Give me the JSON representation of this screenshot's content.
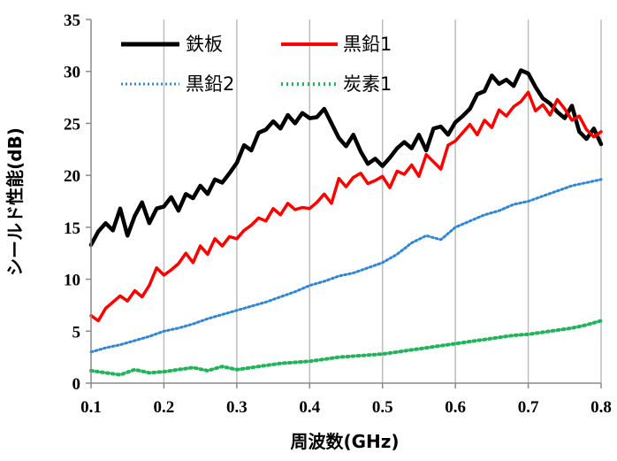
{
  "chart_data": {
    "type": "line",
    "title": "",
    "xlabel": "周波数(GHz)",
    "ylabel": "シールド性能(dB)",
    "xlim": [
      0.1,
      0.8
    ],
    "ylim": [
      0,
      35
    ],
    "xticks": [
      "0.1",
      "0.2",
      "0.3",
      "0.4",
      "0.5",
      "0.6",
      "0.7",
      "0.8"
    ],
    "yticks": [
      "0",
      "5",
      "10",
      "15",
      "20",
      "25",
      "30",
      "35"
    ],
    "grid": "vertical",
    "legend_position": "top-left",
    "series": [
      {
        "name": "鉄板",
        "style": "solid",
        "color": "#000000",
        "x": [
          0.1,
          0.11,
          0.12,
          0.13,
          0.14,
          0.15,
          0.16,
          0.17,
          0.18,
          0.19,
          0.2,
          0.21,
          0.22,
          0.23,
          0.24,
          0.25,
          0.26,
          0.27,
          0.28,
          0.29,
          0.3,
          0.31,
          0.32,
          0.33,
          0.34,
          0.35,
          0.36,
          0.37,
          0.38,
          0.39,
          0.4,
          0.41,
          0.42,
          0.43,
          0.44,
          0.45,
          0.46,
          0.47,
          0.48,
          0.49,
          0.5,
          0.51,
          0.52,
          0.53,
          0.54,
          0.55,
          0.56,
          0.57,
          0.58,
          0.59,
          0.6,
          0.61,
          0.62,
          0.63,
          0.64,
          0.65,
          0.66,
          0.67,
          0.68,
          0.69,
          0.7,
          0.71,
          0.72,
          0.73,
          0.74,
          0.75,
          0.76,
          0.77,
          0.78,
          0.79,
          0.8
        ],
        "y": [
          13.3,
          14.6,
          15.4,
          14.7,
          16.8,
          14.2,
          16.1,
          17.4,
          15.4,
          16.8,
          17.0,
          17.9,
          16.6,
          18.2,
          17.8,
          19.0,
          18.2,
          19.6,
          19.3,
          20.2,
          21.2,
          22.9,
          22.4,
          24.1,
          24.4,
          25.2,
          24.5,
          25.8,
          25.0,
          26.0,
          25.5,
          25.6,
          26.4,
          25.0,
          23.6,
          22.8,
          23.9,
          22.3,
          21.1,
          21.6,
          20.9,
          21.7,
          22.6,
          23.2,
          22.6,
          23.9,
          22.4,
          24.5,
          24.7,
          23.9,
          25.1,
          25.7,
          26.4,
          27.8,
          28.1,
          29.6,
          28.8,
          29.2,
          28.6,
          30.1,
          29.8,
          28.5,
          27.4,
          26.9,
          26.1,
          25.5,
          26.7,
          24.2,
          23.5,
          24.5,
          23.0
        ]
      },
      {
        "name": "黒鉛1",
        "style": "solid",
        "color": "#ff0000",
        "x": [
          0.1,
          0.11,
          0.12,
          0.13,
          0.14,
          0.15,
          0.16,
          0.17,
          0.18,
          0.19,
          0.2,
          0.21,
          0.22,
          0.23,
          0.24,
          0.25,
          0.26,
          0.27,
          0.28,
          0.29,
          0.3,
          0.31,
          0.32,
          0.33,
          0.34,
          0.35,
          0.36,
          0.37,
          0.38,
          0.39,
          0.4,
          0.41,
          0.42,
          0.43,
          0.44,
          0.45,
          0.46,
          0.47,
          0.48,
          0.49,
          0.5,
          0.51,
          0.52,
          0.53,
          0.54,
          0.55,
          0.56,
          0.57,
          0.58,
          0.59,
          0.6,
          0.61,
          0.62,
          0.63,
          0.64,
          0.65,
          0.66,
          0.67,
          0.68,
          0.69,
          0.7,
          0.71,
          0.72,
          0.73,
          0.74,
          0.75,
          0.76,
          0.77,
          0.78,
          0.79,
          0.8
        ],
        "y": [
          6.5,
          6.0,
          7.2,
          7.8,
          8.4,
          7.9,
          8.9,
          8.3,
          9.4,
          11.1,
          10.4,
          10.9,
          11.5,
          12.5,
          11.6,
          13.2,
          12.4,
          13.9,
          13.2,
          14.1,
          13.9,
          14.7,
          15.2,
          15.9,
          15.6,
          16.8,
          16.2,
          17.3,
          16.7,
          16.9,
          16.8,
          17.4,
          18.2,
          17.3,
          19.7,
          18.9,
          19.8,
          20.2,
          19.2,
          19.5,
          19.9,
          18.8,
          20.4,
          20.1,
          21.0,
          19.9,
          22.0,
          21.3,
          20.6,
          22.9,
          23.3,
          24.1,
          24.9,
          23.9,
          25.3,
          24.6,
          26.3,
          25.7,
          26.6,
          27.1,
          28.0,
          26.2,
          26.8,
          25.8,
          27.3,
          26.4,
          25.3,
          25.7,
          24.4,
          23.7,
          24.2
        ]
      },
      {
        "name": "黒鉛2",
        "style": "dotted",
        "color": "#2e86d6",
        "x": [
          0.1,
          0.12,
          0.14,
          0.16,
          0.18,
          0.2,
          0.22,
          0.24,
          0.26,
          0.28,
          0.3,
          0.32,
          0.34,
          0.36,
          0.38,
          0.4,
          0.42,
          0.44,
          0.46,
          0.48,
          0.5,
          0.52,
          0.54,
          0.56,
          0.58,
          0.6,
          0.62,
          0.64,
          0.66,
          0.68,
          0.7,
          0.72,
          0.74,
          0.76,
          0.78,
          0.8
        ],
        "y": [
          3.0,
          3.4,
          3.7,
          4.1,
          4.5,
          5.0,
          5.3,
          5.7,
          6.2,
          6.6,
          7.0,
          7.4,
          7.8,
          8.3,
          8.8,
          9.4,
          9.8,
          10.3,
          10.6,
          11.1,
          11.6,
          12.4,
          13.5,
          14.2,
          13.8,
          15.0,
          15.6,
          16.2,
          16.6,
          17.2,
          17.5,
          18.0,
          18.5,
          19.0,
          19.3,
          19.6
        ]
      },
      {
        "name": "炭素1",
        "style": "dotted",
        "color": "#1fb55a",
        "x": [
          0.1,
          0.12,
          0.14,
          0.16,
          0.18,
          0.2,
          0.22,
          0.24,
          0.26,
          0.28,
          0.3,
          0.32,
          0.34,
          0.36,
          0.38,
          0.4,
          0.42,
          0.44,
          0.46,
          0.48,
          0.5,
          0.52,
          0.54,
          0.56,
          0.58,
          0.6,
          0.62,
          0.64,
          0.66,
          0.68,
          0.7,
          0.72,
          0.74,
          0.76,
          0.78,
          0.8
        ],
        "y": [
          1.2,
          1.0,
          0.8,
          1.3,
          1.0,
          1.1,
          1.3,
          1.5,
          1.2,
          1.6,
          1.3,
          1.5,
          1.7,
          1.9,
          2.0,
          2.1,
          2.3,
          2.5,
          2.6,
          2.7,
          2.8,
          3.0,
          3.2,
          3.4,
          3.6,
          3.8,
          4.0,
          4.2,
          4.4,
          4.6,
          4.7,
          4.9,
          5.1,
          5.3,
          5.6,
          6.0
        ]
      }
    ]
  }
}
